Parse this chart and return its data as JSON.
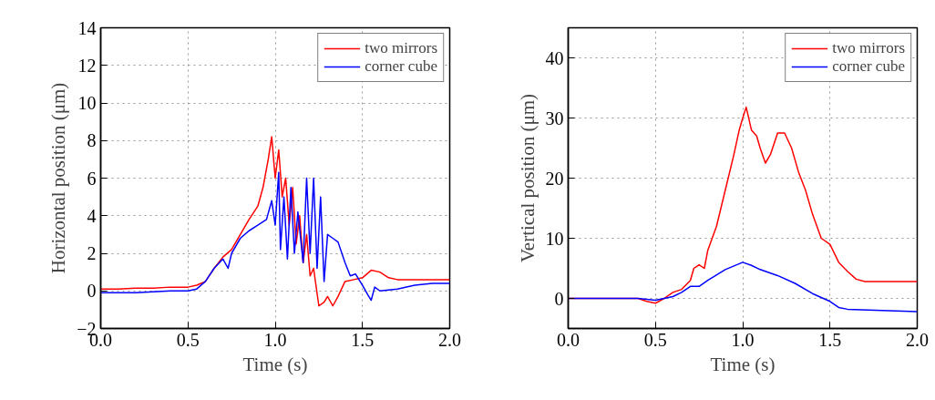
{
  "chart_data": [
    {
      "type": "line",
      "xlabel": "Time (s)",
      "ylabel": "Horizontal position (μm)",
      "xlim": [
        0.0,
        2.0
      ],
      "xticks": [
        {
          "value": 0,
          "label": "0.0"
        },
        {
          "value": 0.5,
          "label": "0.5"
        },
        {
          "value": 1,
          "label": "1.0"
        },
        {
          "value": 1.5,
          "label": "1.5"
        },
        {
          "value": 2,
          "label": "2.0"
        }
      ],
      "ylim": [
        -2,
        14
      ],
      "yticks": [
        {
          "value": -2,
          "label": "−2"
        },
        0,
        2,
        4,
        6,
        8,
        10,
        12,
        14
      ],
      "grid": true,
      "legend": "top right",
      "line_style": "solid",
      "series": [
        {
          "name": "two mirrors",
          "color": "#ff0000",
          "x": [
            0,
            0.1,
            0.2,
            0.3,
            0.4,
            0.5,
            0.55,
            0.6,
            0.65,
            0.7,
            0.75,
            0.8,
            0.85,
            0.9,
            0.93,
            0.96,
            0.98,
            1.0,
            1.02,
            1.04,
            1.06,
            1.08,
            1.1,
            1.12,
            1.14,
            1.16,
            1.18,
            1.2,
            1.22,
            1.25,
            1.28,
            1.3,
            1.33,
            1.36,
            1.4,
            1.45,
            1.5,
            1.55,
            1.6,
            1.65,
            1.7,
            1.8,
            1.9,
            2.0
          ],
          "values": [
            0.1,
            0.1,
            0.15,
            0.15,
            0.2,
            0.2,
            0.3,
            0.5,
            1.2,
            1.8,
            2.2,
            3.0,
            3.8,
            4.5,
            5.5,
            7.0,
            8.2,
            6.0,
            7.5,
            5.0,
            6.0,
            3.5,
            5.5,
            2.5,
            4.0,
            1.5,
            3.0,
            0.8,
            1.2,
            -0.8,
            -0.6,
            -0.3,
            -0.8,
            -0.3,
            0.5,
            0.6,
            0.7,
            1.1,
            1.0,
            0.7,
            0.6,
            0.6,
            0.6,
            0.6
          ]
        },
        {
          "name": "corner cube",
          "color": "#0000ff",
          "x": [
            0,
            0.1,
            0.2,
            0.3,
            0.4,
            0.5,
            0.55,
            0.6,
            0.65,
            0.7,
            0.73,
            0.75,
            0.8,
            0.85,
            0.9,
            0.95,
            0.98,
            1.0,
            1.02,
            1.03,
            1.05,
            1.07,
            1.09,
            1.11,
            1.13,
            1.16,
            1.18,
            1.2,
            1.22,
            1.24,
            1.26,
            1.28,
            1.3,
            1.33,
            1.36,
            1.4,
            1.43,
            1.46,
            1.5,
            1.53,
            1.55,
            1.57,
            1.6,
            1.7,
            1.8,
            1.9,
            2.0
          ],
          "values": [
            -0.1,
            -0.1,
            -0.1,
            -0.05,
            0,
            0,
            0.1,
            0.5,
            1.2,
            1.7,
            1.2,
            2.0,
            2.8,
            3.2,
            3.5,
            3.8,
            4.8,
            3.5,
            6.3,
            2.2,
            5.0,
            1.7,
            5.5,
            2.0,
            4.2,
            1.5,
            6.0,
            2.0,
            6.0,
            1.2,
            5.0,
            0.5,
            3.0,
            2.8,
            2.6,
            1.5,
            0.8,
            0.9,
            0.3,
            -0.2,
            -0.5,
            0.2,
            0.0,
            0.1,
            0.3,
            0.4,
            0.4
          ]
        }
      ]
    },
    {
      "type": "line",
      "xlabel": "Time (s)",
      "ylabel": "Vertical position (μm)",
      "xlim": [
        0.0,
        2.0
      ],
      "xticks": [
        {
          "value": 0,
          "label": "0.0"
        },
        {
          "value": 0.5,
          "label": "0.5"
        },
        {
          "value": 1,
          "label": "1.0"
        },
        {
          "value": 1.5,
          "label": "1.5"
        },
        {
          "value": 2,
          "label": "2.0"
        }
      ],
      "ylim": [
        -5,
        45
      ],
      "yticks": [
        0,
        10,
        20,
        30,
        40
      ],
      "grid": true,
      "legend": "top right",
      "line_style": "solid",
      "series": [
        {
          "name": "two mirrors",
          "color": "#ff0000",
          "x": [
            0,
            0.2,
            0.4,
            0.45,
            0.5,
            0.55,
            0.6,
            0.65,
            0.7,
            0.72,
            0.75,
            0.78,
            0.8,
            0.85,
            0.9,
            0.95,
            0.98,
            1.0,
            1.02,
            1.05,
            1.08,
            1.1,
            1.13,
            1.16,
            1.2,
            1.24,
            1.28,
            1.32,
            1.36,
            1.4,
            1.45,
            1.5,
            1.55,
            1.6,
            1.65,
            1.7,
            1.8,
            2.0
          ],
          "values": [
            0,
            0,
            0,
            -0.5,
            -0.8,
            0,
            1,
            1.5,
            3,
            5,
            5.6,
            5,
            8,
            12,
            18,
            24,
            28,
            30,
            31.8,
            28,
            27,
            25,
            22.5,
            24,
            27.5,
            27.5,
            25,
            21,
            18,
            14,
            10,
            9,
            6,
            4.5,
            3.2,
            2.8,
            2.8,
            2.8
          ]
        },
        {
          "name": "corner cube",
          "color": "#0000ff",
          "x": [
            0,
            0.2,
            0.4,
            0.5,
            0.6,
            0.65,
            0.7,
            0.75,
            0.8,
            0.9,
            1.0,
            1.05,
            1.1,
            1.2,
            1.3,
            1.4,
            1.5,
            1.55,
            1.6,
            1.8,
            2.0
          ],
          "values": [
            0,
            0,
            0,
            -0.3,
            0.3,
            1,
            2,
            2,
            3,
            4.8,
            6,
            5.5,
            4.8,
            3.8,
            2.5,
            0.8,
            -0.5,
            -1.5,
            -1.8,
            -2,
            -2.2
          ]
        }
      ]
    }
  ]
}
